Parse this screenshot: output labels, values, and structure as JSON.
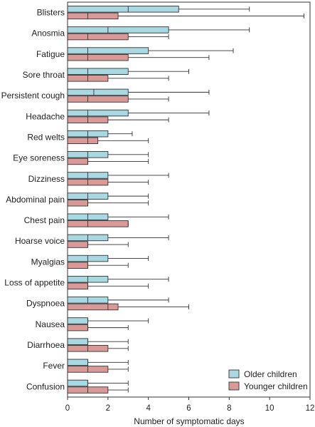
{
  "chart_data": {
    "type": "bar",
    "orientation": "horizontal",
    "xlabel": "Number of symptomatic days",
    "xlim": [
      0,
      12
    ],
    "xticks": [
      "0",
      "2",
      "4",
      "6",
      "8",
      "10",
      "12"
    ],
    "grid": false,
    "legend_position": "bottom-right",
    "categories": [
      "Blisters",
      "Anosmia",
      "Fatigue",
      "Sore throat",
      "Persistent cough",
      "Headache",
      "Red welts",
      "Eye soreness",
      "Dizziness",
      "Abdominal pain",
      "Chest pain",
      "Hoarse voice",
      "Myalgias",
      "Loss of appetite",
      "Dyspnoea",
      "Nausea",
      "Diarrhoea",
      "Fever",
      "Confusion"
    ],
    "series": [
      {
        "name": "Older children",
        "color": "#a8d8e2",
        "values": [
          5.5,
          5,
          4,
          3,
          3,
          3,
          2,
          2,
          2,
          2,
          2,
          2,
          2,
          2,
          2,
          1,
          1,
          1,
          1
        ],
        "q1": [
          3,
          2,
          1,
          1,
          1.3,
          1,
          1,
          1,
          1,
          1,
          1,
          1,
          1,
          1,
          1,
          1,
          1,
          1,
          1
        ],
        "whisker": [
          9,
          9,
          8.2,
          6,
          7,
          7,
          3.2,
          4,
          5,
          4,
          5,
          5,
          4,
          5,
          5,
          4,
          3,
          3,
          3
        ]
      },
      {
        "name": "Younger children",
        "color": "#d99a97",
        "values": [
          2.5,
          3,
          3,
          2,
          3,
          2,
          1.5,
          1,
          2,
          1,
          3,
          1,
          1,
          1,
          2.5,
          1,
          2,
          2,
          2
        ],
        "q1": [
          1,
          1,
          1,
          1,
          1,
          1,
          1,
          1,
          1,
          1,
          1,
          1,
          1,
          1,
          2,
          1,
          1,
          1,
          1
        ],
        "whisker": [
          11.7,
          5,
          7,
          5,
          5,
          5,
          4,
          4,
          4,
          4,
          3,
          3,
          3,
          4,
          6,
          3,
          3,
          3,
          3
        ]
      }
    ]
  }
}
